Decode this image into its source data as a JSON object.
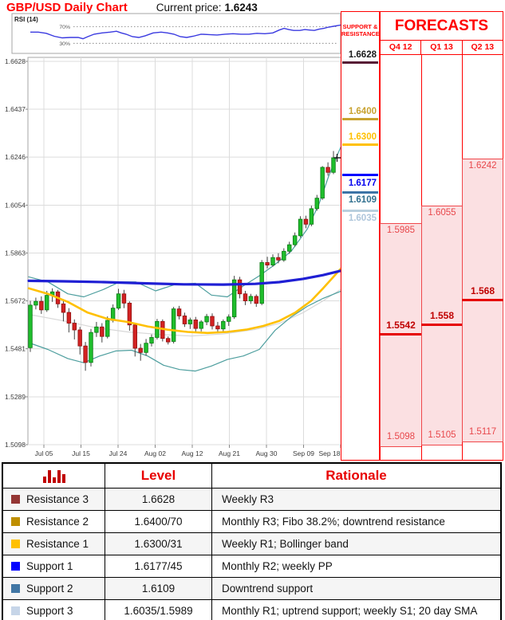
{
  "header": {
    "title": "GBP/USD Daily Chart",
    "current_price_label": "Current price:",
    "current_price": "1.6243"
  },
  "rsi": {
    "label": "RSI (14)",
    "upper_label": "70%",
    "lower_label": "30%",
    "upper_level": 70,
    "lower_level": 30,
    "line_color": "#3A3AE0",
    "points": [
      [
        38,
        57
      ],
      [
        48,
        57
      ],
      [
        58,
        54
      ],
      [
        68,
        47
      ],
      [
        78,
        43
      ],
      [
        88,
        44
      ],
      [
        98,
        44
      ],
      [
        104,
        41
      ],
      [
        110,
        46
      ],
      [
        118,
        52
      ],
      [
        128,
        55
      ],
      [
        138,
        57
      ],
      [
        146,
        59
      ],
      [
        152,
        55
      ],
      [
        158,
        52
      ],
      [
        166,
        46
      ],
      [
        174,
        44
      ],
      [
        182,
        48
      ],
      [
        192,
        55
      ],
      [
        202,
        57
      ],
      [
        210,
        55
      ],
      [
        218,
        52
      ],
      [
        226,
        46
      ],
      [
        234,
        44
      ],
      [
        242,
        47
      ],
      [
        252,
        52
      ],
      [
        262,
        51
      ],
      [
        272,
        50
      ],
      [
        282,
        52
      ],
      [
        292,
        53
      ],
      [
        302,
        52
      ],
      [
        312,
        52
      ],
      [
        322,
        54
      ],
      [
        332,
        53
      ],
      [
        342,
        55
      ],
      [
        350,
        62
      ],
      [
        356,
        66
      ],
      [
        362,
        63
      ],
      [
        368,
        61
      ],
      [
        376,
        61
      ],
      [
        382,
        63
      ],
      [
        388,
        62
      ],
      [
        394,
        61
      ],
      [
        400,
        64
      ],
      [
        406,
        66
      ],
      [
        412,
        69
      ],
      [
        418,
        71
      ],
      [
        424,
        73
      ],
      [
        427,
        74
      ]
    ]
  },
  "chart_data": {
    "type": "candlestick",
    "title": "GBP/USD Daily Chart",
    "current_price": 1.6243,
    "y_ticks": [
      1.6628,
      1.6437,
      1.6246,
      1.6054,
      1.5863,
      1.5672,
      1.5481,
      1.5289,
      1.5098
    ],
    "x_ticks": [
      "Jul 05",
      "Jul 15",
      "Jul 24",
      "Aug 02",
      "Aug 12",
      "Aug 21",
      "Aug 30",
      "Sep 09",
      "Sep 18"
    ],
    "grid": true,
    "up_color": "#1FBE2C",
    "up_stroke": "#0B7A14",
    "down_color": "#D32222",
    "down_stroke": "#8F1010",
    "candles_ohlc": [
      [
        1.5485,
        1.5672,
        1.5468,
        1.5655
      ],
      [
        1.5655,
        1.5685,
        1.5638,
        1.567
      ],
      [
        1.567,
        1.569,
        1.562,
        1.5636
      ],
      [
        1.5636,
        1.5712,
        1.5628,
        1.5694
      ],
      [
        1.5694,
        1.5722,
        1.5668,
        1.5708
      ],
      [
        1.5708,
        1.5716,
        1.5644,
        1.566
      ],
      [
        1.566,
        1.5678,
        1.559,
        1.5626
      ],
      [
        1.5626,
        1.5643,
        1.5546,
        1.5583
      ],
      [
        1.5583,
        1.5598,
        1.5518,
        1.5556
      ],
      [
        1.5556,
        1.5568,
        1.5458,
        1.5492
      ],
      [
        1.5492,
        1.5508,
        1.5393,
        1.5426
      ],
      [
        1.5426,
        1.556,
        1.541,
        1.5546
      ],
      [
        1.5546,
        1.5588,
        1.5528,
        1.5568
      ],
      [
        1.5568,
        1.5583,
        1.5506,
        1.553
      ],
      [
        1.553,
        1.561,
        1.5522,
        1.5594
      ],
      [
        1.5594,
        1.5658,
        1.5586,
        1.5643
      ],
      [
        1.5643,
        1.572,
        1.5636,
        1.57
      ],
      [
        1.57,
        1.5716,
        1.5643,
        1.5663
      ],
      [
        1.5663,
        1.567,
        1.5553,
        1.5576
      ],
      [
        1.5576,
        1.5583,
        1.545,
        1.5483
      ],
      [
        1.5483,
        1.55,
        1.5433,
        1.5466
      ],
      [
        1.5466,
        1.552,
        1.5453,
        1.5503
      ],
      [
        1.5503,
        1.5538,
        1.549,
        1.5526
      ],
      [
        1.5526,
        1.56,
        1.5518,
        1.559
      ],
      [
        1.559,
        1.5598,
        1.551,
        1.5522
      ],
      [
        1.5522,
        1.553,
        1.5498,
        1.5508
      ],
      [
        1.551,
        1.5648,
        1.5502,
        1.564
      ],
      [
        1.564,
        1.5652,
        1.5598,
        1.5612
      ],
      [
        1.5612,
        1.5625,
        1.5568,
        1.558
      ],
      [
        1.558,
        1.5605,
        1.556,
        1.5596
      ],
      [
        1.5596,
        1.5608,
        1.5548,
        1.5562
      ],
      [
        1.5562,
        1.5595,
        1.555,
        1.5588
      ],
      [
        1.5588,
        1.562,
        1.5575,
        1.561
      ],
      [
        1.561,
        1.5622,
        1.5558,
        1.5572
      ],
      [
        1.5572,
        1.5588,
        1.5548,
        1.556
      ],
      [
        1.556,
        1.5598,
        1.555,
        1.559
      ],
      [
        1.559,
        1.5618,
        1.5572,
        1.5608
      ],
      [
        1.5608,
        1.5772,
        1.56,
        1.5756
      ],
      [
        1.5756,
        1.5768,
        1.5682,
        1.57
      ],
      [
        1.57,
        1.5712,
        1.5655,
        1.5672
      ],
      [
        1.5672,
        1.57,
        1.566,
        1.569
      ],
      [
        1.569,
        1.5698,
        1.5648,
        1.5662
      ],
      [
        1.5662,
        1.5835,
        1.5655,
        1.5825
      ],
      [
        1.5825,
        1.5848,
        1.5802,
        1.5815
      ],
      [
        1.5815,
        1.5858,
        1.5808,
        1.5845
      ],
      [
        1.5845,
        1.5862,
        1.5822,
        1.5835
      ],
      [
        1.5835,
        1.5882,
        1.5828,
        1.587
      ],
      [
        1.587,
        1.5908,
        1.586,
        1.5896
      ],
      [
        1.5896,
        1.5945,
        1.5888,
        1.5932
      ],
      [
        1.5932,
        1.601,
        1.5925,
        1.5998
      ],
      [
        1.5998,
        1.6012,
        1.5962,
        1.5978
      ],
      [
        1.5978,
        1.6052,
        1.597,
        1.604
      ],
      [
        1.604,
        1.6095,
        1.6032,
        1.6082
      ],
      [
        1.6082,
        1.621,
        1.6075,
        1.6205
      ],
      [
        1.6205,
        1.6225,
        1.6172,
        1.6185
      ],
      [
        1.6185,
        1.627,
        1.6178,
        1.6243
      ]
    ],
    "overlays": {
      "sma200": {
        "name": "200-day SMA",
        "color": "#1F1FD4",
        "width": 3.2,
        "points": [
          [
            36,
            1.5752
          ],
          [
            80,
            1.575
          ],
          [
            130,
            1.5747
          ],
          [
            180,
            1.5742
          ],
          [
            230,
            1.5738
          ],
          [
            280,
            1.5737
          ],
          [
            320,
            1.574
          ],
          [
            350,
            1.5747
          ],
          [
            380,
            1.576
          ],
          [
            405,
            1.5775
          ],
          [
            427,
            1.5792
          ]
        ]
      },
      "sma20": {
        "name": "20-day SMA",
        "color": "#FFC000",
        "width": 2.6,
        "points": [
          [
            36,
            1.5722
          ],
          [
            60,
            1.57
          ],
          [
            85,
            1.5668
          ],
          [
            110,
            1.5625
          ],
          [
            135,
            1.56
          ],
          [
            160,
            1.5588
          ],
          [
            185,
            1.557
          ],
          [
            210,
            1.5557
          ],
          [
            235,
            1.5548
          ],
          [
            260,
            1.5544
          ],
          [
            285,
            1.5548
          ],
          [
            310,
            1.5558
          ],
          [
            330,
            1.5572
          ],
          [
            350,
            1.5592
          ],
          [
            370,
            1.5625
          ],
          [
            390,
            1.5672
          ],
          [
            405,
            1.5722
          ],
          [
            418,
            1.5768
          ],
          [
            427,
            1.58
          ]
        ]
      },
      "boll_upper": {
        "name": "Bollinger upper band",
        "color": "#4D9E9E",
        "width": 1.2,
        "points": [
          [
            36,
            1.5768
          ],
          [
            60,
            1.5748
          ],
          [
            85,
            1.57
          ],
          [
            105,
            1.5688
          ],
          [
            130,
            1.5718
          ],
          [
            150,
            1.5748
          ],
          [
            170,
            1.5748
          ],
          [
            195,
            1.5712
          ],
          [
            220,
            1.5738
          ],
          [
            245,
            1.5742
          ],
          [
            265,
            1.5695
          ],
          [
            285,
            1.5688
          ],
          [
            305,
            1.5732
          ],
          [
            325,
            1.5772
          ],
          [
            345,
            1.5818
          ],
          [
            365,
            1.587
          ],
          [
            385,
            1.5958
          ],
          [
            400,
            1.606
          ],
          [
            412,
            1.617
          ],
          [
            422,
            1.6248
          ],
          [
            427,
            1.6285
          ]
        ]
      },
      "boll_lower": {
        "name": "Bollinger lower band",
        "color": "#4D9E9E",
        "width": 1.2,
        "points": [
          [
            36,
            1.5505
          ],
          [
            60,
            1.5478
          ],
          [
            85,
            1.5442
          ],
          [
            105,
            1.5425
          ],
          [
            125,
            1.5452
          ],
          [
            145,
            1.5472
          ],
          [
            165,
            1.5475
          ],
          [
            185,
            1.5452
          ],
          [
            205,
            1.5415
          ],
          [
            225,
            1.5398
          ],
          [
            245,
            1.5392
          ],
          [
            265,
            1.5412
          ],
          [
            285,
            1.5438
          ],
          [
            305,
            1.5452
          ],
          [
            325,
            1.5478
          ],
          [
            345,
            1.5555
          ],
          [
            365,
            1.5608
          ],
          [
            385,
            1.565
          ],
          [
            405,
            1.5682
          ],
          [
            427,
            1.571
          ]
        ]
      },
      "sma100": {
        "name": "100-day SMA",
        "color": "#D8D8D8",
        "width": 1.2,
        "points": [
          [
            36,
            1.5618
          ],
          [
            80,
            1.5592
          ],
          [
            120,
            1.5565
          ],
          [
            160,
            1.5548
          ],
          [
            200,
            1.5538
          ],
          [
            240,
            1.5532
          ],
          [
            280,
            1.554
          ],
          [
            320,
            1.5558
          ],
          [
            350,
            1.5582
          ],
          [
            380,
            1.5625
          ],
          [
            405,
            1.5672
          ],
          [
            427,
            1.5718
          ]
        ]
      }
    }
  },
  "sr_panel": {
    "title_line1": "SUPPORT &",
    "title_line2": "RESISTANCE",
    "levels": [
      {
        "label": "1.6628",
        "value": 1.6628,
        "line_color": "#571A35",
        "text_color": "#1A1A1A",
        "side": "above"
      },
      {
        "label": "1.6400",
        "value": 1.64,
        "line_color": "#C8A22F",
        "text_color": "#C8A22F",
        "side": "above"
      },
      {
        "label": "1.6300",
        "value": 1.63,
        "line_color": "#FFC000",
        "text_color": "#FFC000",
        "side": "above"
      },
      {
        "label": "1.6177",
        "value": 1.6177,
        "line_color": "#0000FF",
        "text_color": "#0000EE",
        "side": "below"
      },
      {
        "label": "1.6109",
        "value": 1.6109,
        "line_color": "#3D74A6",
        "text_color": "#31708F",
        "side": "below"
      },
      {
        "label": "1.6035",
        "value": 1.6035,
        "line_color": "#B9CFDE",
        "text_color": "#AEC6DB",
        "side": "below"
      }
    ]
  },
  "forecasts": {
    "title": "FORECASTS",
    "columns": [
      {
        "label": "Q4 12",
        "high": 1.5985,
        "low": 1.5098,
        "central": 1.5542,
        "high_label": "1.5985",
        "low_label": "1.5098",
        "central_label": "1.5542"
      },
      {
        "label": "Q1 13",
        "high": 1.6055,
        "low": 1.5105,
        "central": 1.558,
        "high_label": "1.6055",
        "low_label": "1.5105",
        "central_label": "1.558"
      },
      {
        "label": "Q2 13",
        "high": 1.6242,
        "low": 1.5117,
        "central": 1.568,
        "high_label": "1.6242",
        "low_label": "1.5117",
        "central_label": "1.568"
      }
    ]
  },
  "table": {
    "icon": "bar-chart-icon",
    "icon_color": "#C00000",
    "level_header": "Level",
    "rationale_header": "Rationale",
    "rows": [
      {
        "name": "Resistance 3",
        "swatch": "#943634",
        "level": "1.6628",
        "rationale": "Weekly R3"
      },
      {
        "name": "Resistance 2",
        "swatch": "#BF8F00",
        "level": "1.6400/70",
        "rationale": "Monthly R3; Fibo 38.2%; downtrend resistance"
      },
      {
        "name": "Resistance 1",
        "swatch": "#FFC000",
        "level": "1.6300/31",
        "rationale": "Weekly R1; Bollinger band"
      },
      {
        "name": "Support 1",
        "swatch": "#0000FF",
        "level": "1.6177/45",
        "rationale": "Monthly R2; weekly PP"
      },
      {
        "name": "Support 2",
        "swatch": "#4176A4",
        "level": "1.6109",
        "rationale": "Downtrend support"
      },
      {
        "name": "Support 3",
        "swatch": "#C6D5E8",
        "level": "1.6035/1.5989",
        "rationale": "Monthly R1; uptrend support; weekly S1; 20 day SMA"
      }
    ]
  }
}
